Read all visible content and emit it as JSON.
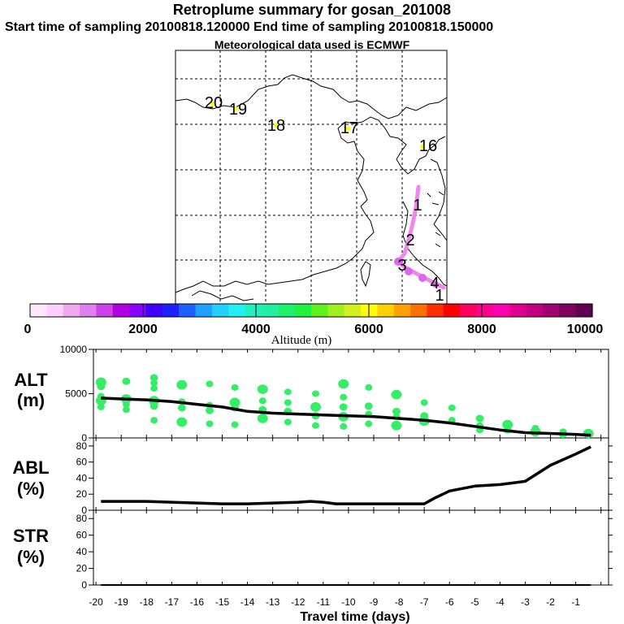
{
  "header": {
    "title": "Retroplume summary for gosan_201008",
    "sampling": "Start time of sampling 20100818.120000      End time of sampling 20100818.150000",
    "met": "Meteorological data used is ECMWF"
  },
  "colors": {
    "trajectory": "#ee88ee",
    "label_dot": "#ffff00",
    "plume": "#33ee66",
    "line": "#000000"
  },
  "map": {
    "day_labels": [
      "1",
      "2",
      "3",
      "4",
      "1",
      "16",
      "17",
      "18",
      "19",
      "20"
    ]
  },
  "colorbar": {
    "tick_labels": [
      "0",
      "2000",
      "4000",
      "6000",
      "8000",
      "10000"
    ],
    "label": "Altitude (m)",
    "colors": [
      "#ffe8ff",
      "#ffd0ff",
      "#f0a8f0",
      "#e080f0",
      "#cc44e8",
      "#b000e0",
      "#8800ff",
      "#4000ff",
      "#2020ff",
      "#2060ff",
      "#20a0ff",
      "#20d0ff",
      "#20f0f0",
      "#20f0c0",
      "#20f0a0",
      "#20f070",
      "#20f040",
      "#60f020",
      "#a0f020",
      "#d0f020",
      "#ffff00",
      "#ffd000",
      "#ffa000",
      "#ff7000",
      "#ff3000",
      "#ff0000",
      "#ff0060",
      "#ff0090",
      "#ff00b0",
      "#e00090",
      "#c00080",
      "#a00070",
      "#800060",
      "#600050"
    ]
  },
  "panels": {
    "alt": {
      "label1": "ALT",
      "label2": "(m)"
    },
    "abl": {
      "label1": "ABL",
      "label2": "(%)"
    },
    "str": {
      "label1": "STR",
      "label2": "(%)"
    }
  },
  "chart_data": [
    {
      "type": "line",
      "title": "ALT",
      "ylabel": "ALT (m)",
      "xlim": [
        -20.1,
        0.3
      ],
      "ylim": [
        0,
        10000
      ],
      "y_ticks": [
        "0",
        "5000",
        "10000"
      ],
      "x": [
        -19.8,
        -19,
        -18,
        -17,
        -16,
        -15,
        -14,
        -13,
        -12,
        -11,
        -10,
        -9,
        -8,
        -7,
        -6,
        -5,
        -4,
        -3,
        -2,
        -1,
        -0.4
      ],
      "values": [
        4500,
        4400,
        4300,
        4100,
        3800,
        3500,
        3000,
        2800,
        2700,
        2600,
        2500,
        2400,
        2200,
        2000,
        1700,
        1300,
        900,
        600,
        500,
        400,
        300
      ],
      "plume": [
        {
          "x": -19.8,
          "y": 6300
        },
        {
          "x": -19.8,
          "y": 5800
        },
        {
          "x": -19.8,
          "y": 4700
        },
        {
          "x": -19.8,
          "y": 4200
        },
        {
          "x": -19.8,
          "y": 3500
        },
        {
          "x": -18.8,
          "y": 6400
        },
        {
          "x": -18.8,
          "y": 4400
        },
        {
          "x": -18.8,
          "y": 3800
        },
        {
          "x": -18.8,
          "y": 3200
        },
        {
          "x": -17.7,
          "y": 6800
        },
        {
          "x": -17.7,
          "y": 6200
        },
        {
          "x": -17.7,
          "y": 5600
        },
        {
          "x": -17.7,
          "y": 4200
        },
        {
          "x": -17.7,
          "y": 3600
        },
        {
          "x": -17.7,
          "y": 2000
        },
        {
          "x": -16.6,
          "y": 6000
        },
        {
          "x": -16.6,
          "y": 4100
        },
        {
          "x": -16.6,
          "y": 3400
        },
        {
          "x": -16.6,
          "y": 1800
        },
        {
          "x": -15.5,
          "y": 6100
        },
        {
          "x": -15.5,
          "y": 3700
        },
        {
          "x": -15.5,
          "y": 3100
        },
        {
          "x": -15.5,
          "y": 1600
        },
        {
          "x": -14.5,
          "y": 5700
        },
        {
          "x": -14.5,
          "y": 4000
        },
        {
          "x": -14.5,
          "y": 3400
        },
        {
          "x": -14.5,
          "y": 1500
        },
        {
          "x": -13.4,
          "y": 5500
        },
        {
          "x": -13.4,
          "y": 4200
        },
        {
          "x": -13.4,
          "y": 3200
        },
        {
          "x": -13.4,
          "y": 2200
        },
        {
          "x": -12.4,
          "y": 5200
        },
        {
          "x": -12.4,
          "y": 4000
        },
        {
          "x": -12.4,
          "y": 3000
        },
        {
          "x": -12.4,
          "y": 1800
        },
        {
          "x": -11.3,
          "y": 5000
        },
        {
          "x": -11.3,
          "y": 3500
        },
        {
          "x": -11.3,
          "y": 2500
        },
        {
          "x": -11.3,
          "y": 1400
        },
        {
          "x": -10.2,
          "y": 6100
        },
        {
          "x": -10.2,
          "y": 4600
        },
        {
          "x": -10.2,
          "y": 3500
        },
        {
          "x": -10.2,
          "y": 2400
        },
        {
          "x": -10.2,
          "y": 1300
        },
        {
          "x": -9.2,
          "y": 5700
        },
        {
          "x": -9.2,
          "y": 3600
        },
        {
          "x": -9.2,
          "y": 2700
        },
        {
          "x": -9.2,
          "y": 1600
        },
        {
          "x": -8.1,
          "y": 4900
        },
        {
          "x": -8.1,
          "y": 3000
        },
        {
          "x": -8.1,
          "y": 2400
        },
        {
          "x": -8.1,
          "y": 1400
        },
        {
          "x": -7.0,
          "y": 4000
        },
        {
          "x": -7.0,
          "y": 2500
        },
        {
          "x": -7.0,
          "y": 1900
        },
        {
          "x": -5.9,
          "y": 3400
        },
        {
          "x": -5.9,
          "y": 2000
        },
        {
          "x": -4.8,
          "y": 2200
        },
        {
          "x": -4.8,
          "y": 1400
        },
        {
          "x": -4.8,
          "y": 900
        },
        {
          "x": -3.7,
          "y": 1500
        },
        {
          "x": -3.7,
          "y": 900
        },
        {
          "x": -2.6,
          "y": 1100
        },
        {
          "x": -2.6,
          "y": 700
        },
        {
          "x": -1.5,
          "y": 700
        },
        {
          "x": -1.5,
          "y": 400
        },
        {
          "x": -0.5,
          "y": 500
        }
      ]
    },
    {
      "type": "line",
      "title": "ABL",
      "ylabel": "ABL (%)",
      "xlim": [
        -20.1,
        0.3
      ],
      "ylim": [
        0,
        90
      ],
      "y_ticks": [
        "0",
        "20",
        "40",
        "60",
        "80"
      ],
      "x": [
        -19.8,
        -19,
        -18,
        -17,
        -16,
        -15,
        -14,
        -13,
        -12,
        -11.5,
        -11,
        -10.5,
        -10,
        -9,
        -8,
        -7,
        -6.6,
        -6,
        -5,
        -4,
        -3,
        -2,
        -1,
        -0.4
      ],
      "values": [
        11,
        11,
        11,
        10,
        9,
        8,
        8,
        9,
        10,
        11,
        10,
        8,
        8,
        8,
        8,
        8,
        15,
        24,
        30,
        32,
        36,
        56,
        70,
        79
      ]
    },
    {
      "type": "line",
      "title": "STR",
      "ylabel": "STR (%)",
      "xlabel": "Travel time (days)",
      "xlim": [
        -20.1,
        0.3
      ],
      "ylim": [
        0,
        90
      ],
      "y_ticks": [
        "0",
        "20",
        "40",
        "60",
        "80"
      ],
      "x_ticks": [
        "-20",
        "-19",
        "-18",
        "-17",
        "-16",
        "-15",
        "-14",
        "-13",
        "-12",
        "-11",
        "-10",
        "-9",
        "-8",
        "-7",
        "-6",
        "-5",
        "-4",
        "-3",
        "-2",
        "-1"
      ],
      "x": [
        -19.8,
        -0.4
      ],
      "values": [
        0,
        0
      ]
    }
  ]
}
